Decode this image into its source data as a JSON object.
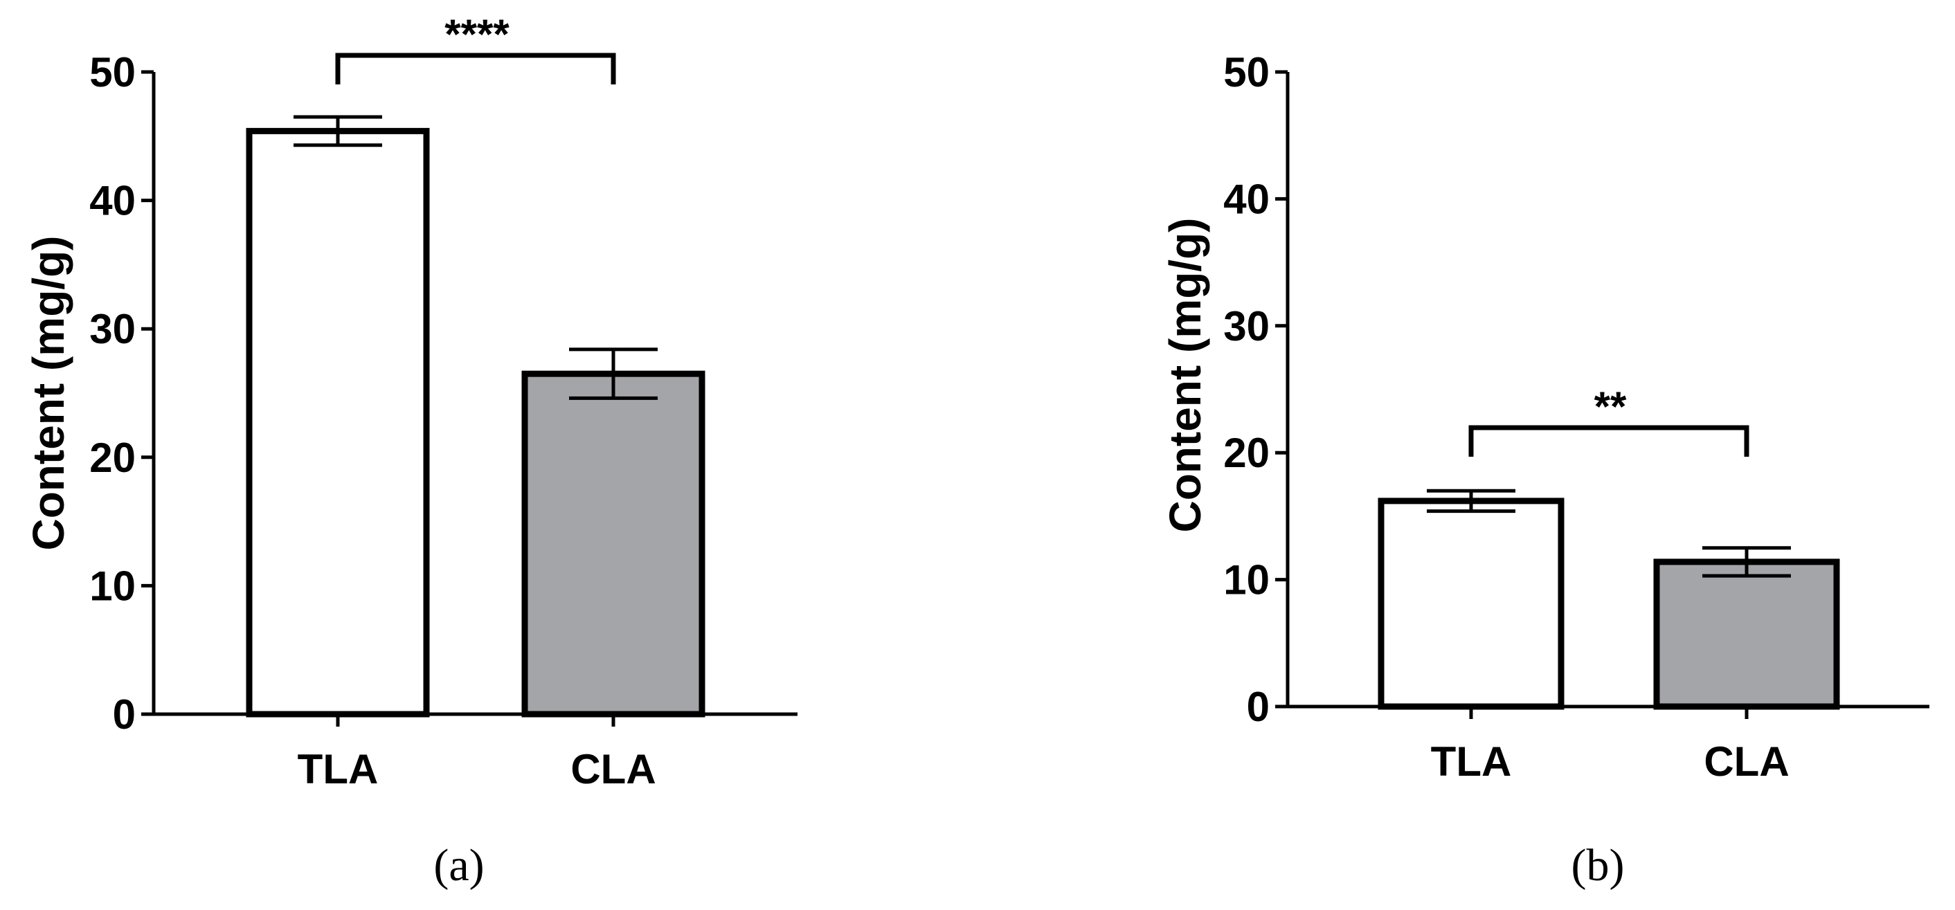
{
  "chart_data": [
    {
      "type": "bar",
      "panel_label": "(a)",
      "ylabel": "Content (mg/g)",
      "ylim": [
        0,
        50
      ],
      "yticks": [
        "0",
        "10",
        "20",
        "30",
        "40",
        "50"
      ],
      "categories": [
        "TLA",
        "CLA"
      ],
      "values": [
        45.4,
        26.5
      ],
      "errors": [
        1.1,
        1.9
      ],
      "bar_colors": [
        "#ffffff",
        "#a4a5a9"
      ],
      "significance": {
        "label": "****",
        "between": [
          "TLA",
          "CLA"
        ]
      },
      "grid": false
    },
    {
      "type": "bar",
      "panel_label": "(b)",
      "ylabel": "Content (mg/g)",
      "ylim": [
        0,
        50
      ],
      "yticks": [
        "0",
        "10",
        "20",
        "30",
        "40",
        "50"
      ],
      "categories": [
        "TLA",
        "CLA"
      ],
      "values": [
        16.2,
        11.4
      ],
      "errors": [
        0.8,
        1.1
      ],
      "bar_colors": [
        "#ffffff",
        "#a4a5a9"
      ],
      "significance": {
        "label": "**",
        "between": [
          "TLA",
          "CLA"
        ]
      },
      "grid": false
    }
  ]
}
